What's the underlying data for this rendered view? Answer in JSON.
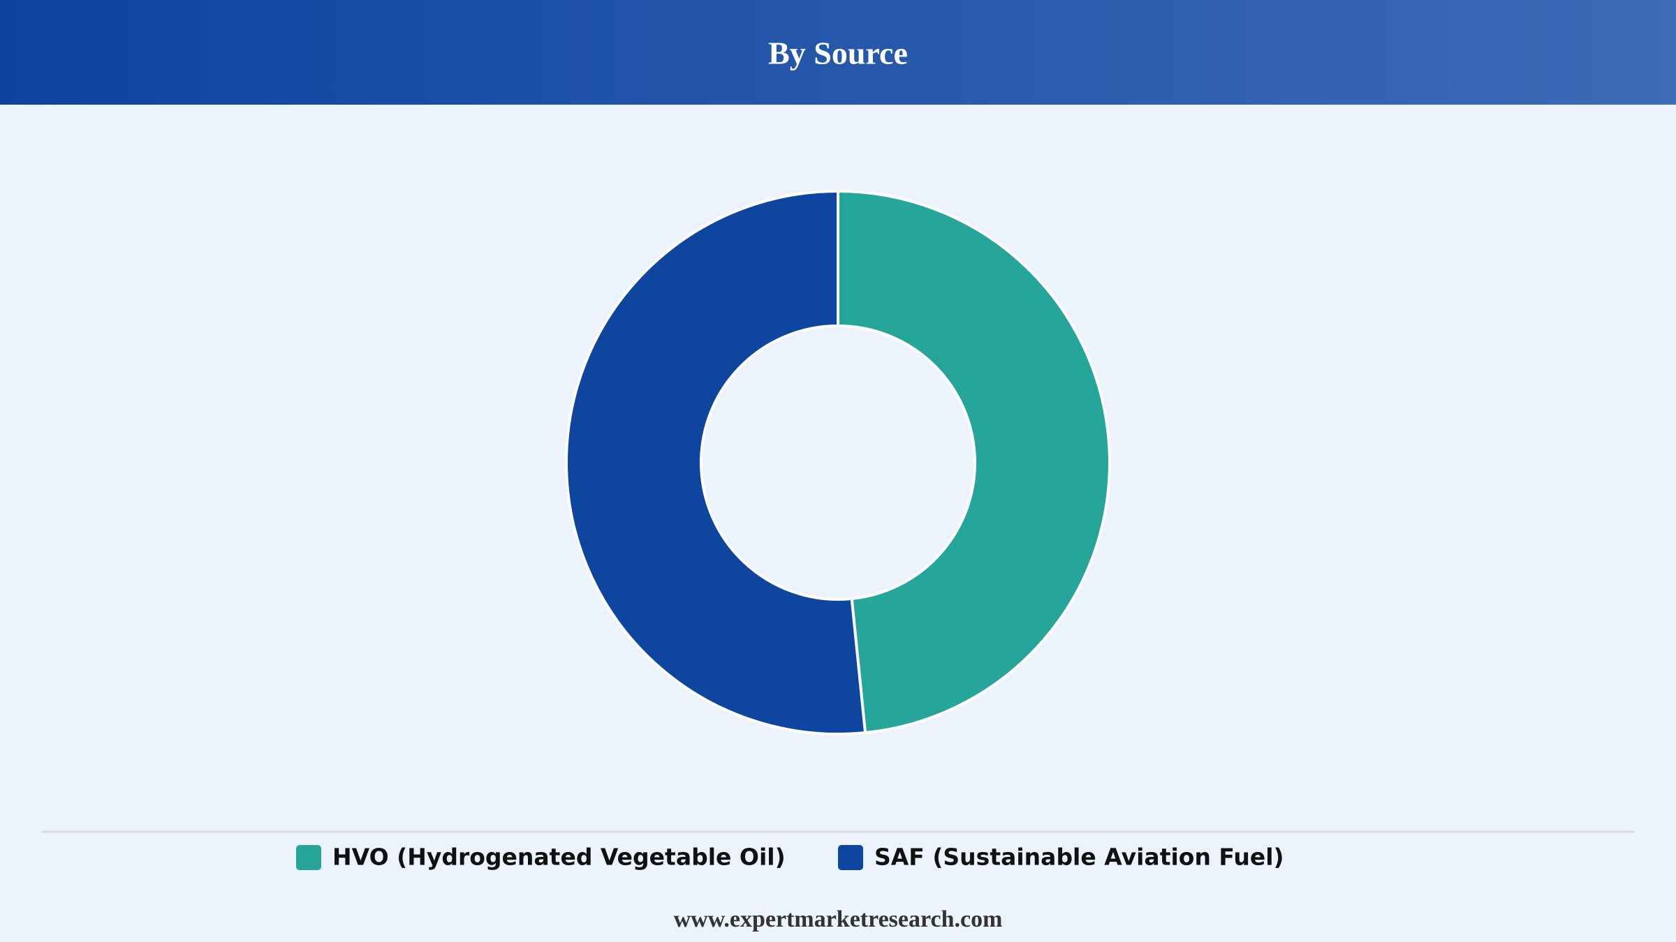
{
  "chart_data": {
    "type": "pie",
    "title": "By Source",
    "categories": [
      "HVO (Hydrogenated Vegetable Oil)",
      "SAF (Sustainable Aviation Fuel)"
    ],
    "values": [
      48.4,
      51.6
    ],
    "colors": [
      "#26a69a",
      "#0e459e"
    ],
    "footer": "www.expertmarketresearch.com"
  }
}
